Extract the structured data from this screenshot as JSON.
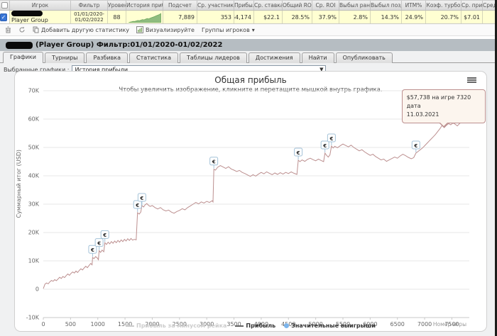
{
  "stats_table": {
    "headers": [
      "",
      "Игрок",
      "Фильтр",
      "Уровен",
      "История прибы",
      "Подсчет",
      "Ср. участник",
      "Прибыль",
      "Ср. ставка",
      "Общий ROI",
      "Ср. ROI",
      "Выбыл рано",
      "Выбыл позд",
      "ИТМ%",
      "Коэф. турбо",
      "Ср. приб",
      "Средняя"
    ],
    "row": {
      "player": "Player Group",
      "filter_line1": "01/01/2020-",
      "filter_line2": "01/02/2022",
      "level": "88",
      "sparkline": [
        0,
        0.8,
        1.2,
        1.8,
        1.6,
        2.4,
        3.0,
        2.7,
        3.5,
        4.2,
        3.9,
        4.8,
        5.6,
        5.2,
        6.2,
        7.0,
        7.8,
        8.6,
        9.6,
        10.4,
        11.4,
        12.6
      ],
      "values": [
        "7,889",
        "353",
        "$64,174",
        "$22.1",
        "28.5%",
        "37.9%",
        "2.8%",
        "14.3%",
        "24.9%",
        "20.7%",
        "$7.01"
      ]
    }
  },
  "toolbar": {
    "add_stat": "Добавить другую статистику",
    "visualize": "Визуализируйте",
    "groups": "Группы игроков",
    "caret": "▾"
  },
  "window": {
    "title": "(Player Group) Фильтр:01/01/2020-01/02/2022",
    "tabs": [
      "Графики",
      "Турниры",
      "Разбивка",
      "Статистика",
      "Таблицы лидеров",
      "Достижения",
      "Найти",
      "Опубликовать"
    ],
    "active_tab": 0
  },
  "controls": {
    "label": "Выбранные графики :",
    "selected_graph": "История прибыли",
    "arrow": "▼"
  },
  "chart_data": {
    "type": "line",
    "title": "Общая прибыль",
    "subtitle": "Чтобы увеличить изображение, кликните и перетащите мышкой внутрь графика.",
    "xlabel": "Номер игры",
    "ylabel": "Суммарный итог (USD)",
    "xlim": [
      0,
      7820
    ],
    "ylim": [
      -10000,
      70000
    ],
    "grid": "horizontal",
    "line_color": "#bc8f8f",
    "marker_border": "#a3c2d8",
    "marker_glyph": "€",
    "x_ticks": [
      0,
      500,
      1000,
      1500,
      2000,
      2500,
      3000,
      3500,
      4000,
      4500,
      5000,
      5500,
      6000,
      6500,
      7000,
      7500
    ],
    "y_ticks": [
      {
        "value": 70000,
        "label": "70K"
      },
      {
        "value": 60000,
        "label": "60K"
      },
      {
        "value": 50000,
        "label": "50K"
      },
      {
        "value": 40000,
        "label": "40K"
      },
      {
        "value": 30000,
        "label": "30K"
      },
      {
        "value": 20000,
        "label": "20K"
      },
      {
        "value": 10000,
        "label": "10K"
      },
      {
        "value": 0,
        "label": "0"
      },
      {
        "value": -10000,
        "label": "-10K"
      }
    ],
    "series": [
      {
        "name": "Прибыль",
        "color": "#bc8f8f",
        "points": [
          [
            0,
            200
          ],
          [
            30,
            1800
          ],
          [
            60,
            2200
          ],
          [
            90,
            1900
          ],
          [
            120,
            2600
          ],
          [
            150,
            3100
          ],
          [
            180,
            2800
          ],
          [
            210,
            3400
          ],
          [
            240,
            3000
          ],
          [
            270,
            3600
          ],
          [
            300,
            4200
          ],
          [
            330,
            3800
          ],
          [
            360,
            4500
          ],
          [
            390,
            4100
          ],
          [
            420,
            4800
          ],
          [
            450,
            5400
          ],
          [
            480,
            4900
          ],
          [
            510,
            5600
          ],
          [
            540,
            6100
          ],
          [
            570,
            5700
          ],
          [
            600,
            6400
          ],
          [
            630,
            5900
          ],
          [
            660,
            6600
          ],
          [
            690,
            7200
          ],
          [
            720,
            6800
          ],
          [
            750,
            7500
          ],
          [
            780,
            8100
          ],
          [
            810,
            7600
          ],
          [
            840,
            8400
          ],
          [
            870,
            9100
          ],
          [
            895,
            8600
          ],
          [
            905,
            11200
          ],
          [
            930,
            10800
          ],
          [
            960,
            11500
          ],
          [
            990,
            11000
          ],
          [
            1012,
            10400
          ],
          [
            1025,
            13600
          ],
          [
            1050,
            13000
          ],
          [
            1080,
            13800
          ],
          [
            1110,
            13200
          ],
          [
            1130,
            16400
          ],
          [
            1160,
            15800
          ],
          [
            1190,
            16600
          ],
          [
            1220,
            16000
          ],
          [
            1250,
            16800
          ],
          [
            1280,
            16200
          ],
          [
            1310,
            17000
          ],
          [
            1340,
            16400
          ],
          [
            1370,
            17200
          ],
          [
            1400,
            16600
          ],
          [
            1430,
            17400
          ],
          [
            1460,
            16800
          ],
          [
            1490,
            17600
          ],
          [
            1520,
            17000
          ],
          [
            1550,
            17800
          ],
          [
            1580,
            17200
          ],
          [
            1610,
            17900
          ],
          [
            1640,
            17300
          ],
          [
            1670,
            17600
          ],
          [
            1705,
            17400
          ],
          [
            1730,
            27000
          ],
          [
            1760,
            26500
          ],
          [
            1790,
            27200
          ],
          [
            1810,
            29500
          ],
          [
            1840,
            29000
          ],
          [
            1870,
            29800
          ],
          [
            1900,
            30200
          ],
          [
            1930,
            29600
          ],
          [
            1960,
            29200
          ],
          [
            2000,
            29500
          ],
          [
            2050,
            28800
          ],
          [
            2100,
            28300
          ],
          [
            2150,
            28800
          ],
          [
            2200,
            28000
          ],
          [
            2250,
            27600
          ],
          [
            2300,
            27900
          ],
          [
            2350,
            27200
          ],
          [
            2400,
            26800
          ],
          [
            2450,
            27400
          ],
          [
            2500,
            27800
          ],
          [
            2550,
            28400
          ],
          [
            2600,
            28000
          ],
          [
            2650,
            28800
          ],
          [
            2700,
            29400
          ],
          [
            2750,
            30000
          ],
          [
            2800,
            30600
          ],
          [
            2850,
            30100
          ],
          [
            2900,
            30800
          ],
          [
            2950,
            30400
          ],
          [
            3000,
            31000
          ],
          [
            3050,
            30600
          ],
          [
            3100,
            31200
          ],
          [
            3115,
            30800
          ],
          [
            3130,
            42300
          ],
          [
            3160,
            42000
          ],
          [
            3200,
            43000
          ],
          [
            3250,
            43600
          ],
          [
            3300,
            43100
          ],
          [
            3350,
            42600
          ],
          [
            3400,
            43200
          ],
          [
            3450,
            42400
          ],
          [
            3500,
            42000
          ],
          [
            3550,
            41500
          ],
          [
            3600,
            41900
          ],
          [
            3650,
            41200
          ],
          [
            3700,
            40800
          ],
          [
            3750,
            40300
          ],
          [
            3800,
            39800
          ],
          [
            3850,
            40400
          ],
          [
            3900,
            39900
          ],
          [
            3950,
            40600
          ],
          [
            4000,
            41200
          ],
          [
            4050,
            40700
          ],
          [
            4100,
            41400
          ],
          [
            4150,
            40900
          ],
          [
            4200,
            40400
          ],
          [
            4250,
            41000
          ],
          [
            4300,
            40500
          ],
          [
            4350,
            41100
          ],
          [
            4400,
            40600
          ],
          [
            4450,
            41200
          ],
          [
            4500,
            40800
          ],
          [
            4550,
            41400
          ],
          [
            4600,
            40900
          ],
          [
            4655,
            40500
          ],
          [
            4680,
            45500
          ],
          [
            4710,
            45000
          ],
          [
            4750,
            45600
          ],
          [
            4800,
            45100
          ],
          [
            4850,
            45800
          ],
          [
            4900,
            46200
          ],
          [
            4950,
            45700
          ],
          [
            5000,
            45300
          ],
          [
            5050,
            45900
          ],
          [
            5100,
            45400
          ],
          [
            5145,
            45000
          ],
          [
            5170,
            48000
          ],
          [
            5200,
            47200
          ],
          [
            5230,
            46600
          ],
          [
            5262,
            47400
          ],
          [
            5290,
            50500
          ],
          [
            5320,
            49800
          ],
          [
            5350,
            50400
          ],
          [
            5400,
            49900
          ],
          [
            5450,
            50600
          ],
          [
            5500,
            51200
          ],
          [
            5550,
            50700
          ],
          [
            5600,
            50200
          ],
          [
            5650,
            50800
          ],
          [
            5700,
            50000
          ],
          [
            5750,
            49400
          ],
          [
            5800,
            48800
          ],
          [
            5850,
            49200
          ],
          [
            5900,
            48400
          ],
          [
            5950,
            47800
          ],
          [
            6000,
            47200
          ],
          [
            6050,
            47600
          ],
          [
            6100,
            46800
          ],
          [
            6150,
            46200
          ],
          [
            6200,
            45600
          ],
          [
            6250,
            45900
          ],
          [
            6300,
            45100
          ],
          [
            6350,
            45600
          ],
          [
            6400,
            46100
          ],
          [
            6450,
            46600
          ],
          [
            6500,
            46200
          ],
          [
            6550,
            47000
          ],
          [
            6600,
            47600
          ],
          [
            6650,
            47100
          ],
          [
            6700,
            46500
          ],
          [
            6755,
            46000
          ],
          [
            6800,
            46400
          ],
          [
            6840,
            48000
          ],
          [
            6880,
            48600
          ],
          [
            6920,
            49200
          ],
          [
            6960,
            49800
          ],
          [
            7000,
            50600
          ],
          [
            7040,
            51400
          ],
          [
            7080,
            52200
          ],
          [
            7120,
            53000
          ],
          [
            7160,
            53800
          ],
          [
            7200,
            54600
          ],
          [
            7240,
            55600
          ],
          [
            7280,
            56600
          ],
          [
            7320,
            57738
          ],
          [
            7360,
            57000
          ],
          [
            7400,
            57800
          ],
          [
            7440,
            58400
          ],
          [
            7480,
            58000
          ],
          [
            7520,
            58600
          ],
          [
            7560,
            58200
          ],
          [
            7600,
            57600
          ],
          [
            7640,
            58400
          ],
          [
            7680,
            59200
          ],
          [
            7720,
            60200
          ],
          [
            7760,
            61000
          ],
          [
            7790,
            60400
          ],
          [
            7820,
            61200
          ]
        ]
      }
    ],
    "significant_wins": [
      [
        905,
        11200
      ],
      [
        1025,
        13600
      ],
      [
        1130,
        16400
      ],
      [
        1730,
        27000
      ],
      [
        1810,
        29500
      ],
      [
        3130,
        42300
      ],
      [
        4680,
        45500
      ],
      [
        5170,
        48000
      ],
      [
        5290,
        50500
      ],
      [
        6840,
        48000
      ]
    ],
    "tooltip": {
      "line1": "$57,738 на игре 7320 дата",
      "line2": "11.03.2021",
      "game": 7320,
      "value": 57738
    },
    "legend": [
      {
        "label": "Прибыль за минусом рейка",
        "type": "line",
        "color": "#cccccc",
        "text_color": "#cccccc"
      },
      {
        "label": "Прибыль",
        "type": "line",
        "color": "#666666",
        "text_color": "#333333"
      },
      {
        "label": "Значительные выигрыши",
        "type": "dot",
        "color": "#7cb5ec",
        "text_color": "#333333"
      }
    ],
    "legend_position": "bottom-center"
  }
}
